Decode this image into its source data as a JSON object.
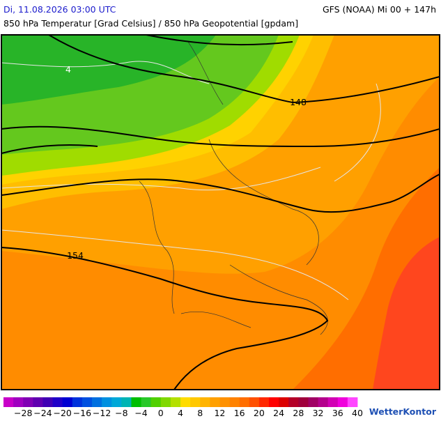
{
  "header": {
    "datetime": "Di, 11.08.2026 03:00 UTC",
    "model": "GFS (NOAA) Mi 00 + 147h",
    "subtitle": "850 hPa Temperatur [Grad Celsius] / 850 hPa Geopotential [gpdam]"
  },
  "map": {
    "contour_labels": [
      "4",
      "148",
      "154"
    ]
  },
  "colorbar": {
    "colors": [
      "#c800c8",
      "#a000c0",
      "#8000b4",
      "#6000b0",
      "#4000b4",
      "#2000c8",
      "#0000d2",
      "#0032dc",
      "#0050e0",
      "#0070e0",
      "#0090e0",
      "#00a8d8",
      "#00b4b4",
      "#00be00",
      "#28c828",
      "#50d000",
      "#80d800",
      "#b4e000",
      "#ffdc00",
      "#ffc800",
      "#ffb400",
      "#ffa000",
      "#ff9100",
      "#ff8200",
      "#ff6e00",
      "#ff5000",
      "#ff2800",
      "#ff0000",
      "#dc0000",
      "#b40028",
      "#a0003c",
      "#a00064",
      "#b4008c",
      "#d200b4",
      "#f000dc",
      "#ff46ff"
    ],
    "labels": [
      "−28",
      "−24",
      "−20",
      "−16",
      "−12",
      "−8",
      "−4",
      "0",
      "4",
      "8",
      "12",
      "16",
      "20",
      "24",
      "28",
      "32",
      "36",
      "40"
    ]
  },
  "logo": "WetterKontor"
}
